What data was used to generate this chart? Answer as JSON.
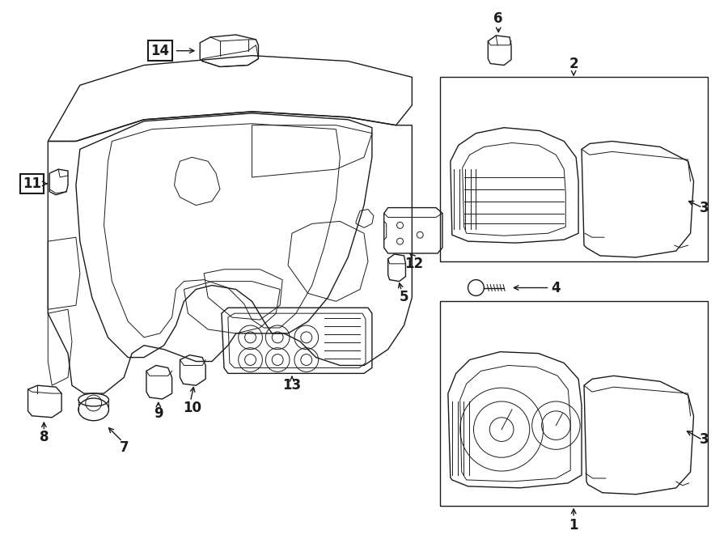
{
  "bg_color": "#ffffff",
  "line_color": "#1a1a1a",
  "fig_width": 9.0,
  "fig_height": 6.61,
  "dpi": 100
}
